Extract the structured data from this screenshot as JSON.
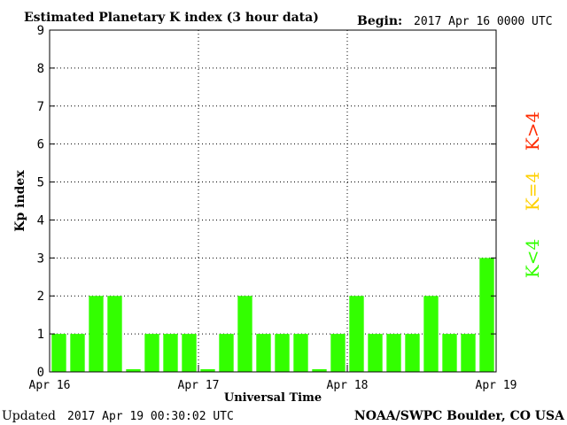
{
  "header": {
    "title": "Estimated Planetary K index (3 hour data)",
    "begin_label": "Begin:",
    "begin_value": "2017 Apr 16 0000 UTC"
  },
  "footer": {
    "updated_label": "Updated",
    "updated_value": "2017 Apr 19 00:30:02 UTC",
    "source": "NOAA/SWPC Boulder, CO USA"
  },
  "legend": {
    "items": [
      {
        "label": "K>4",
        "color": "#ff2a00"
      },
      {
        "label": "K=4",
        "color": "#ffd000"
      },
      {
        "label": "K<4",
        "color": "#33ff00"
      }
    ]
  },
  "chart_data": {
    "type": "bar",
    "title": "Estimated Planetary K index (3 hour data)",
    "xlabel": "Universal Time",
    "ylabel": "Kp index",
    "ylim": [
      0,
      9
    ],
    "yticks": [
      0,
      1,
      2,
      3,
      4,
      5,
      6,
      7,
      8,
      9
    ],
    "xtick_labels": [
      "Apr 16",
      "Apr 17",
      "Apr 18",
      "Apr 19"
    ],
    "bar_interval": "3 hour",
    "grid": "dotted",
    "bar_color": "#33ff00",
    "values": [
      1,
      1,
      2,
      2,
      0,
      1,
      1,
      1,
      0,
      1,
      2,
      1,
      1,
      1,
      0,
      1,
      2,
      1,
      1,
      1,
      2,
      1,
      1,
      3
    ]
  }
}
